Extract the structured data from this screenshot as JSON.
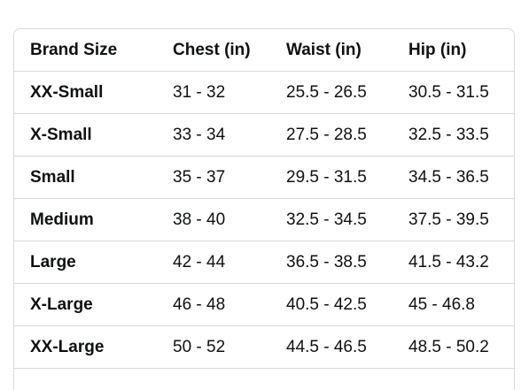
{
  "table": {
    "headers": [
      "Brand Size",
      "Chest (in)",
      "Waist (in)",
      "Hip (in)"
    ],
    "rows": [
      [
        "XX-Small",
        "31 - 32",
        "25.5 - 26.5",
        "30.5 - 31.5"
      ],
      [
        "X-Small",
        "33 - 34",
        "27.5 - 28.5",
        "32.5 - 33.5"
      ],
      [
        "Small",
        "35 - 37",
        "29.5 - 31.5",
        "34.5 - 36.5"
      ],
      [
        "Medium",
        "38 - 40",
        "32.5 - 34.5",
        "37.5 - 39.5"
      ],
      [
        "Large",
        "42 - 44",
        "36.5 - 38.5",
        "41.5 - 43.2"
      ],
      [
        "X-Large",
        "46 - 48",
        "40.5 - 42.5",
        "45 - 46.8"
      ],
      [
        "XX-Large",
        "50 - 52",
        "44.5 - 46.5",
        "48.5 - 50.2"
      ]
    ]
  }
}
